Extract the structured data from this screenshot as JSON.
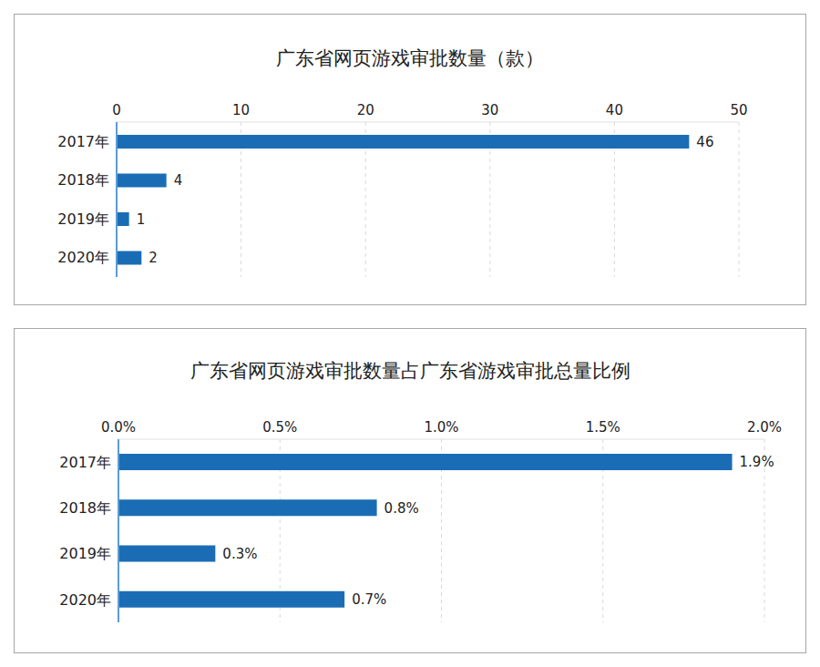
{
  "chart_data": [
    {
      "type": "bar",
      "title": "广东省网页游戏审批数量（款）",
      "categories": [
        "2017年",
        "2018年",
        "2019年",
        "2020年"
      ],
      "values": [
        46,
        4,
        1,
        2
      ],
      "color": "#1a6db5",
      "orientation": "horizontal",
      "xlim": [
        0,
        50
      ],
      "xticks": [
        0,
        10,
        20,
        30,
        40,
        50
      ],
      "grid": true,
      "data_labels": true
    },
    {
      "type": "bar",
      "title": "广东省网页游戏审批数量占广东省游戏审批总量比例",
      "categories": [
        "2017年",
        "2018年",
        "2019年",
        "2020年"
      ],
      "values": [
        1.9,
        0.8,
        0.3,
        0.7
      ],
      "value_labels": [
        "1.9%",
        "0.8%",
        "0.3%",
        "0.7%"
      ],
      "color": "#1a6db5",
      "orientation": "horizontal",
      "xlim": [
        0,
        2
      ],
      "xticks": [
        {
          "value": 0,
          "label": "0.0%"
        },
        {
          "value": 0.5,
          "label": "0.5%"
        },
        {
          "value": 1,
          "label": "1.0%"
        },
        {
          "value": 1.5,
          "label": "1.5%"
        },
        {
          "value": 2,
          "label": "2.0%"
        }
      ],
      "grid": true,
      "data_labels": true
    }
  ]
}
